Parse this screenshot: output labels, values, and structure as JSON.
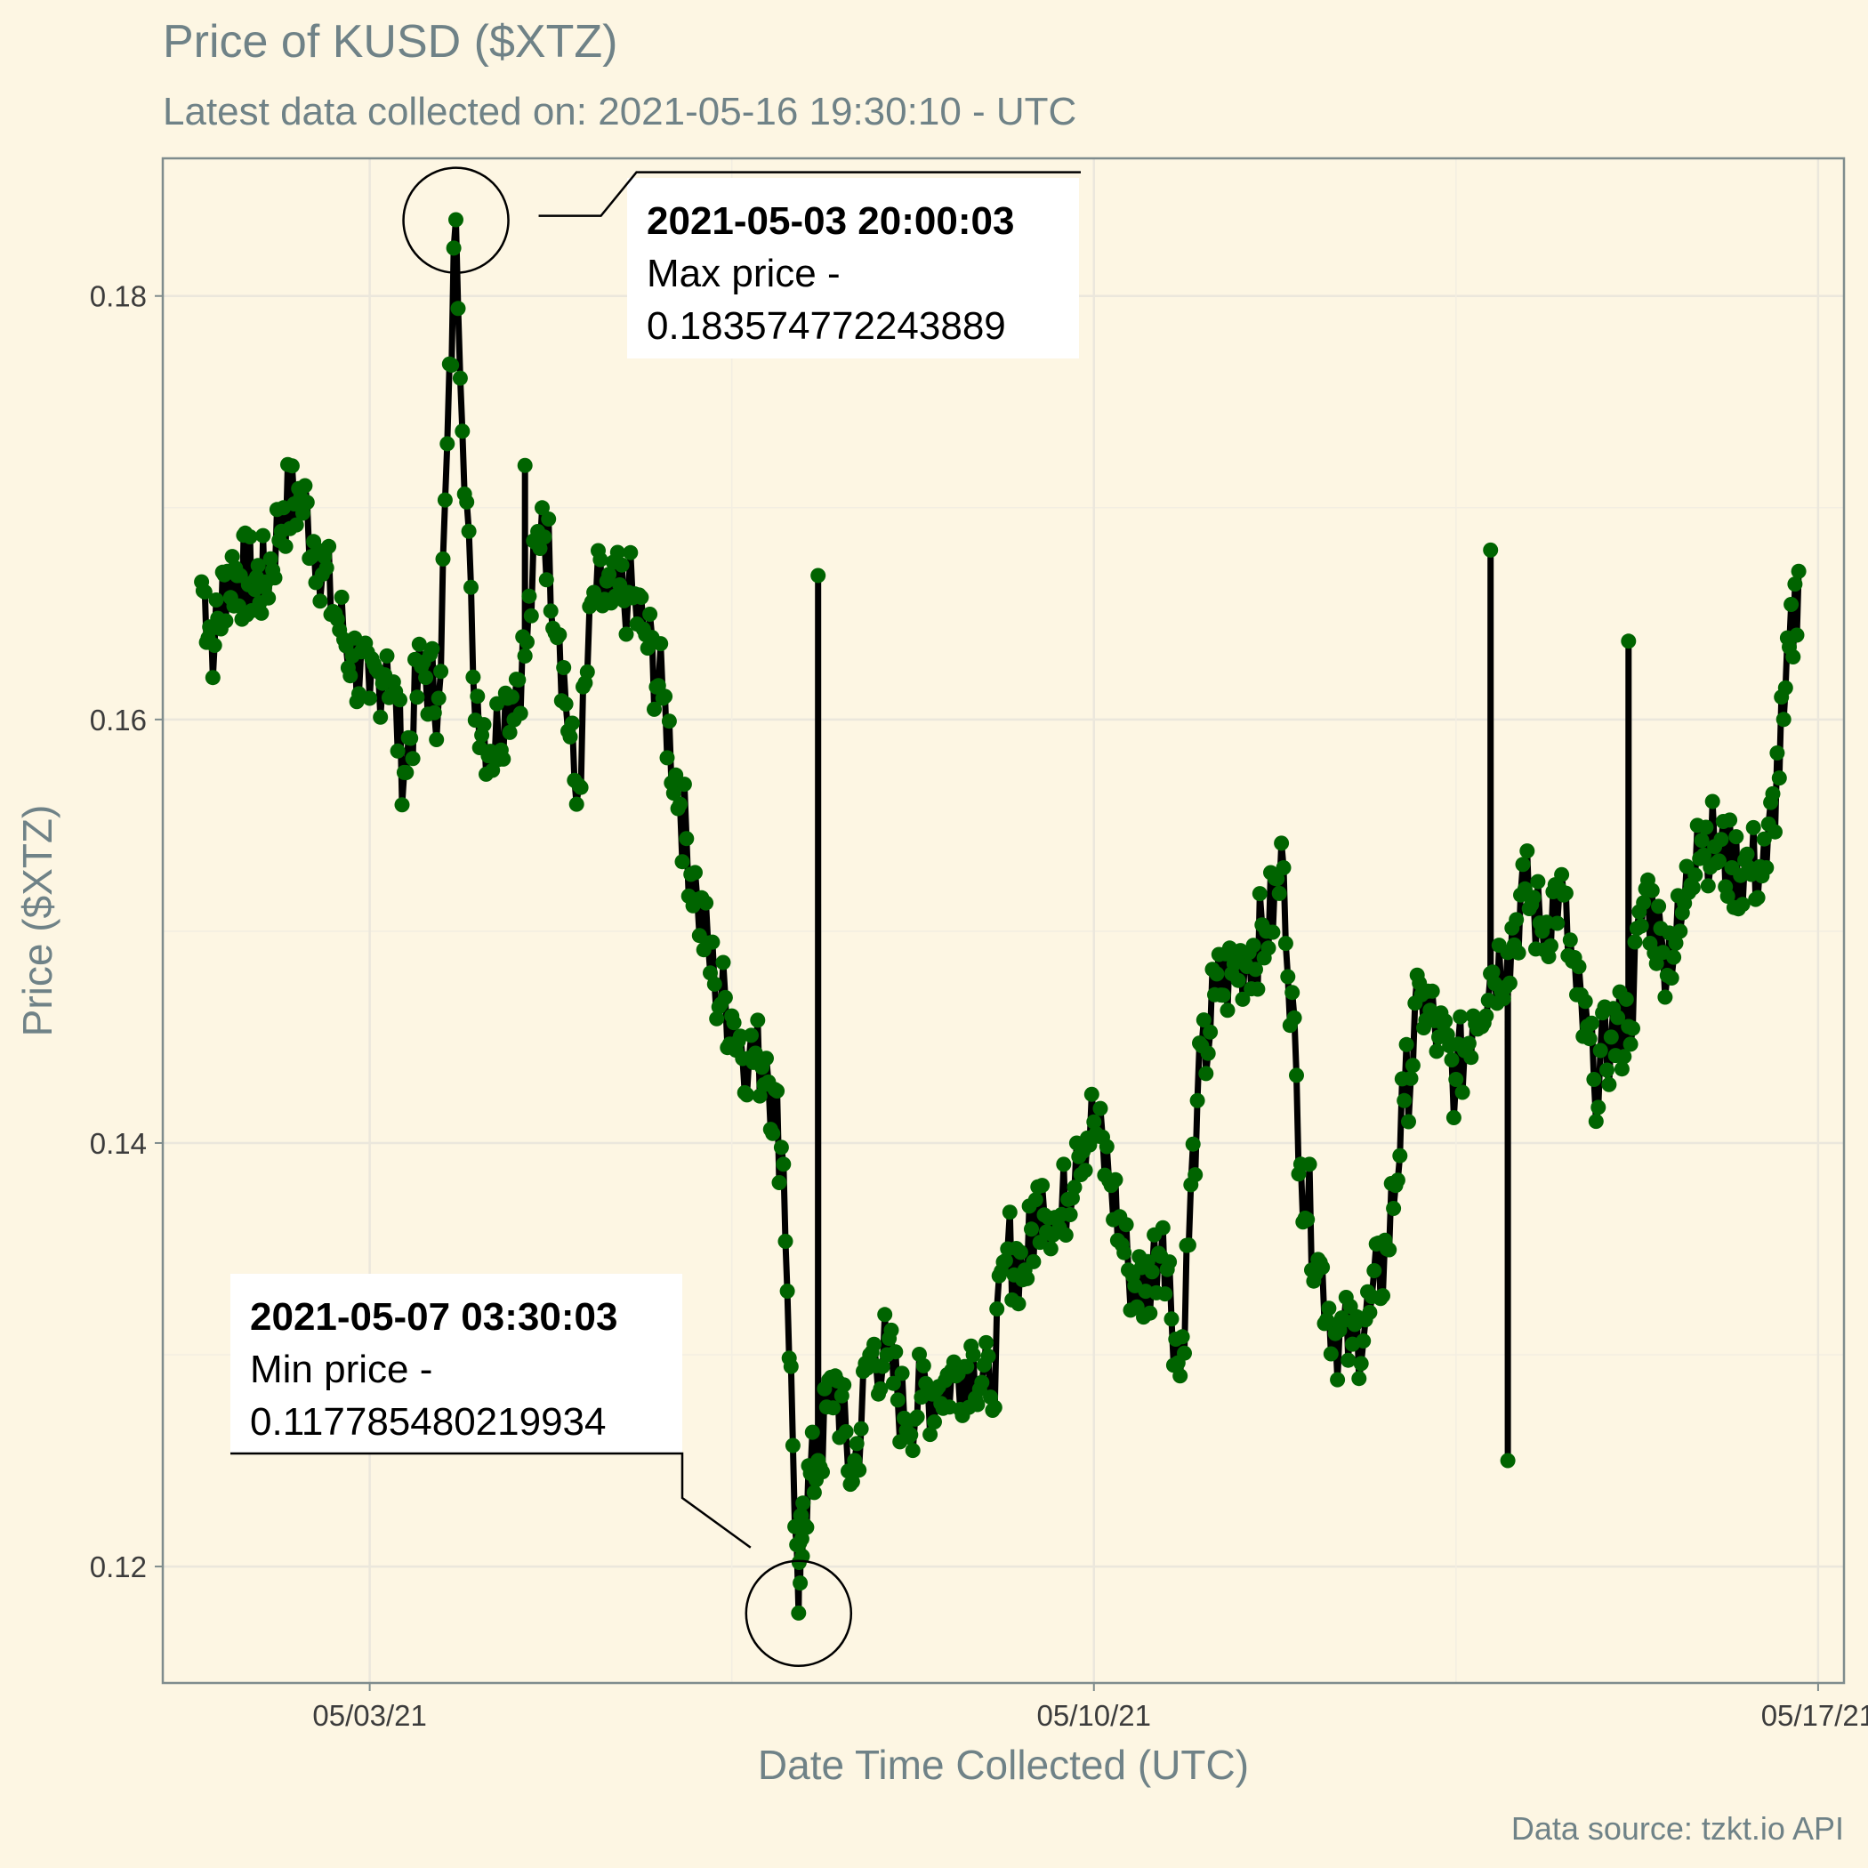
{
  "chart_data": {
    "type": "line",
    "title": "Price of KUSD ($XTZ)",
    "subtitle": "Latest data collected on: 2021-05-16 19:30:10  - UTC",
    "xlabel": "Date Time Collected (UTC)",
    "ylabel": "Price ($XTZ)",
    "caption": "Data source: tzkt.io API",
    "x_ticks": [
      "05/03/21",
      "05/10/21",
      "05/17/21"
    ],
    "y_ticks": [
      "0.12",
      "0.14",
      "0.16",
      "0.18"
    ],
    "x_range": [
      "2021-05-01 00:00",
      "2021-05-17 06:00"
    ],
    "ylim": [
      0.1145,
      0.1865
    ],
    "grid": true,
    "line_color": "#000000",
    "point_color": "#006400",
    "background": "#fdf6e3",
    "x": [
      "2021-05-01 09:00",
      "2021-05-01 12:00",
      "2021-05-01 15:00",
      "2021-05-01 18:00",
      "2021-05-01 21:00",
      "2021-05-02 00:00",
      "2021-05-02 04:00",
      "2021-05-02 08:00",
      "2021-05-02 12:00",
      "2021-05-02 16:00",
      "2021-05-02 20:00",
      "2021-05-03 00:00",
      "2021-05-03 04:00",
      "2021-05-03 08:00",
      "2021-05-03 12:00",
      "2021-05-03 16:00",
      "2021-05-03 20:00",
      "2021-05-04 00:00",
      "2021-05-04 04:00",
      "2021-05-04 08:00",
      "2021-05-04 12:00",
      "2021-05-04 16:00",
      "2021-05-04 20:00",
      "2021-05-05 00:00",
      "2021-05-05 04:00",
      "2021-05-05 08:00",
      "2021-05-05 12:00",
      "2021-05-05 16:00",
      "2021-05-05 20:00",
      "2021-05-06 00:00",
      "2021-05-06 04:00",
      "2021-05-06 08:00",
      "2021-05-06 12:00",
      "2021-05-06 16:00",
      "2021-05-06 20:00",
      "2021-05-07 00:00",
      "2021-05-07 03:30",
      "2021-05-07 04:30",
      "2021-05-07 08:00",
      "2021-05-07 12:00",
      "2021-05-07 16:00",
      "2021-05-07 20:00",
      "2021-05-08 00:00",
      "2021-05-08 04:00",
      "2021-05-08 08:00",
      "2021-05-08 12:00",
      "2021-05-08 16:00",
      "2021-05-08 20:00",
      "2021-05-09 00:00",
      "2021-05-09 04:00",
      "2021-05-09 08:00",
      "2021-05-09 12:00",
      "2021-05-09 16:00",
      "2021-05-09 20:00",
      "2021-05-10 00:00",
      "2021-05-10 04:00",
      "2021-05-10 08:00",
      "2021-05-10 12:00",
      "2021-05-10 16:00",
      "2021-05-10 20:00",
      "2021-05-11 00:00",
      "2021-05-11 04:00",
      "2021-05-11 08:00",
      "2021-05-11 12:00",
      "2021-05-11 16:00",
      "2021-05-11 20:00",
      "2021-05-12 00:00",
      "2021-05-12 04:00",
      "2021-05-12 08:00",
      "2021-05-12 12:00",
      "2021-05-12 16:00",
      "2021-05-12 20:00",
      "2021-05-13 00:00",
      "2021-05-13 04:00",
      "2021-05-13 08:00",
      "2021-05-13 12:00",
      "2021-05-13 16:00",
      "2021-05-13 20:00",
      "2021-05-14 00:00",
      "2021-05-14 04:00",
      "2021-05-14 08:00",
      "2021-05-14 12:00",
      "2021-05-14 16:00",
      "2021-05-14 20:00",
      "2021-05-15 00:00",
      "2021-05-15 04:00",
      "2021-05-15 08:00",
      "2021-05-15 12:00",
      "2021-05-15 16:00",
      "2021-05-15 20:00",
      "2021-05-16 00:00",
      "2021-05-16 04:00",
      "2021-05-16 08:00",
      "2021-05-16 12:00",
      "2021-05-16 16:00",
      "2021-05-16 19:30"
    ],
    "y": [
      0.1665,
      0.1635,
      0.167,
      0.1668,
      0.1665,
      0.1665,
      0.17,
      0.1705,
      0.168,
      0.165,
      0.163,
      0.161,
      0.163,
      0.1575,
      0.1625,
      0.161,
      0.1836,
      0.162,
      0.1585,
      0.161,
      0.163,
      0.17,
      0.164,
      0.156,
      0.166,
      0.1655,
      0.166,
      0.164,
      0.161,
      0.156,
      0.1515,
      0.1475,
      0.146,
      0.144,
      0.144,
      0.139,
      0.1178,
      0.123,
      0.125,
      0.129,
      0.124,
      0.13,
      0.13,
      0.127,
      0.128,
      0.1285,
      0.129,
      0.13,
      0.128,
      0.135,
      0.134,
      0.138,
      0.136,
      0.14,
      0.141,
      0.138,
      0.134,
      0.133,
      0.136,
      0.129,
      0.142,
      0.147,
      0.148,
      0.149,
      0.15,
      0.153,
      0.139,
      0.1345,
      0.131,
      0.1305,
      0.132,
      0.135,
      0.142,
      0.147,
      0.145,
      0.143,
      0.146,
      0.148,
      0.149,
      0.152,
      0.15,
      0.152,
      0.147,
      0.143,
      0.145,
      0.1455,
      0.152,
      0.149,
      0.15,
      0.155,
      0.154,
      0.153,
      0.153,
      0.153,
      0.16,
      0.167
    ],
    "spikes": [
      {
        "x": "2021-05-03 20:00",
        "y": 0.1836
      },
      {
        "x": "2021-05-04 12:00",
        "y": 0.172
      },
      {
        "x": "2021-05-07 08:00",
        "y": 0.1668
      },
      {
        "x": "2021-05-13 20:00",
        "y": 0.168
      },
      {
        "x": "2021-05-14 00:00",
        "y": 0.125
      },
      {
        "x": "2021-05-15 04:00",
        "y": 0.1637
      }
    ],
    "annotations": [
      {
        "x": "2021-05-03 20:00",
        "y": 0.183574772243889,
        "bold": "2021-05-03 20:00:03",
        "line1": "Max price -",
        "line2": "0.183574772243889"
      },
      {
        "x": "2021-05-07 03:30",
        "y": 0.117785480219934,
        "bold": "2021-05-07 03:30:03",
        "line1": "Min price -",
        "line2": "0.117785480219934"
      }
    ]
  }
}
